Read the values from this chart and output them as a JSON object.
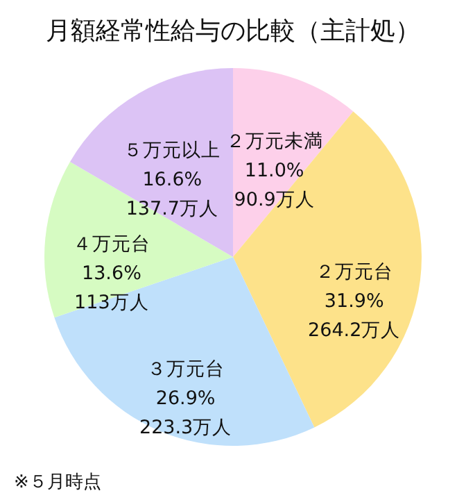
{
  "chart_data": {
    "type": "pie",
    "title": "月額経常性給与の比較（主計処）",
    "categories": [
      "２万元未満",
      "２万元台",
      "３万元台",
      "４万元台",
      "５万元以上"
    ],
    "values": [
      11.0,
      31.9,
      26.9,
      13.6,
      16.6
    ],
    "value_labels": [
      "11.0%\n90.9万人",
      "31.9%\n264.2万人",
      "26.9%\n223.3万人",
      "13.6%\n113万人",
      "16.6%\n137.7万人"
    ],
    "colors": [
      "#fdd0ea",
      "#fde28a",
      "#bfe0fb",
      "#d6fbc2",
      "#dcc3f5"
    ],
    "annotations": [
      "※５月時点"
    ],
    "legend": false
  }
}
